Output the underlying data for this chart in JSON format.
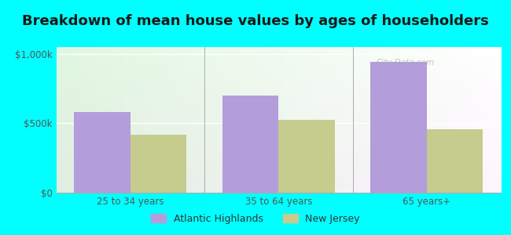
{
  "title": "Breakdown of mean house values by ages of householders",
  "categories": [
    "25 to 34 years",
    "35 to 64 years",
    "65 years+"
  ],
  "atlantic_highlands": [
    580000,
    700000,
    940000
  ],
  "new_jersey": [
    420000,
    525000,
    455000
  ],
  "bar_color_ah": "#b39ddb",
  "bar_color_nj": "#c5cc8e",
  "background_color": "#00ffff",
  "ylabel_ticks": [
    0,
    500000,
    1000000
  ],
  "ylabel_labels": [
    "$0",
    "$500k",
    "$1,000k"
  ],
  "ylim": [
    0,
    1050000
  ],
  "legend_ah": "Atlantic Highlands",
  "legend_nj": "New Jersey",
  "title_fontsize": 13,
  "tick_fontsize": 8.5,
  "legend_fontsize": 9,
  "watermark": "City-Data.com"
}
